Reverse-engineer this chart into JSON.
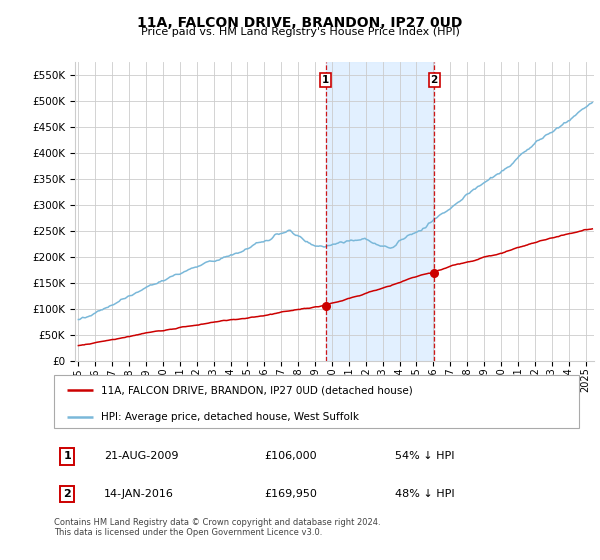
{
  "title": "11A, FALCON DRIVE, BRANDON, IP27 0UD",
  "subtitle": "Price paid vs. HM Land Registry's House Price Index (HPI)",
  "ylabel_ticks": [
    "£0",
    "£50K",
    "£100K",
    "£150K",
    "£200K",
    "£250K",
    "£300K",
    "£350K",
    "£400K",
    "£450K",
    "£500K",
    "£550K"
  ],
  "ytick_values": [
    0,
    50000,
    100000,
    150000,
    200000,
    250000,
    300000,
    350000,
    400000,
    450000,
    500000,
    550000
  ],
  "ylim": [
    0,
    575000
  ],
  "xlim_start": 1994.8,
  "xlim_end": 2025.5,
  "hpi_color": "#7ab8d9",
  "price_color": "#cc0000",
  "background_color": "#ffffff",
  "grid_color": "#cccccc",
  "sale1_date": 2009.64,
  "sale1_price": 106000,
  "sale2_date": 2016.04,
  "sale2_price": 169950,
  "vline_color": "#cc0000",
  "shade_color": "#ddeeff",
  "legend_line1": "11A, FALCON DRIVE, BRANDON, IP27 0UD (detached house)",
  "legend_line2": "HPI: Average price, detached house, West Suffolk",
  "table_row1": [
    "1",
    "21-AUG-2009",
    "£106,000",
    "54% ↓ HPI"
  ],
  "table_row2": [
    "2",
    "14-JAN-2016",
    "£169,950",
    "48% ↓ HPI"
  ],
  "footnote": "Contains HM Land Registry data © Crown copyright and database right 2024.\nThis data is licensed under the Open Government Licence v3.0.",
  "xtick_years": [
    1995,
    1996,
    1997,
    1998,
    1999,
    2000,
    2001,
    2002,
    2003,
    2004,
    2005,
    2006,
    2007,
    2008,
    2009,
    2010,
    2011,
    2012,
    2013,
    2014,
    2015,
    2016,
    2017,
    2018,
    2019,
    2020,
    2021,
    2022,
    2023,
    2024,
    2025
  ]
}
